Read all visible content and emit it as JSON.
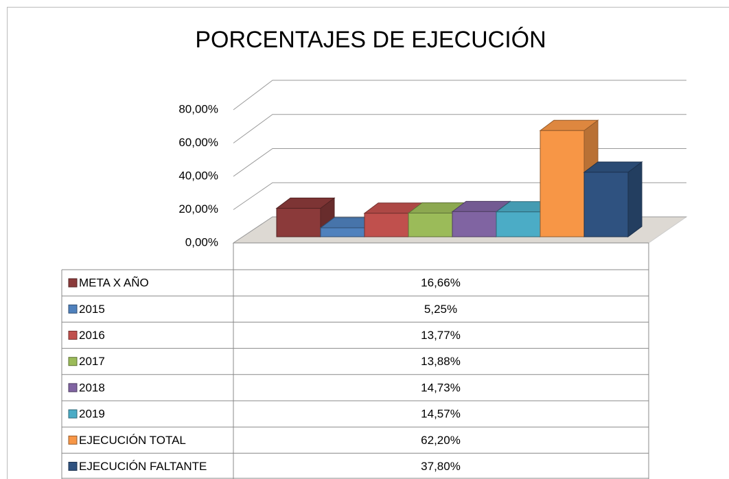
{
  "chart_data": {
    "type": "bar3d",
    "title": "PORCENTAJES DE EJECUCIÓN",
    "categories": [
      "META X AÑO",
      "2015",
      "2016",
      "2017",
      "2018",
      "2019",
      "EJECUCIÓN TOTAL",
      "EJECUCIÓN FALTANTE"
    ],
    "values": [
      16.66,
      5.25,
      13.77,
      13.88,
      14.73,
      14.57,
      62.2,
      37.8
    ],
    "value_labels": [
      "16,66%",
      "5,25%",
      "13,77%",
      "13,88%",
      "14,73%",
      "14,57%",
      "62,20%",
      "37,80%"
    ],
    "colors": [
      "#8b3a3a",
      "#4f81bd",
      "#c0504d",
      "#9bbb59",
      "#8064a2",
      "#4bacc6",
      "#f79646",
      "#2f5280"
    ],
    "ylim": [
      0,
      80
    ],
    "yticks": [
      {
        "value": 0,
        "label": "0,00%"
      },
      {
        "value": 20,
        "label": "20,00%"
      },
      {
        "value": 40,
        "label": "40,00%"
      },
      {
        "value": 60,
        "label": "60,00%"
      },
      {
        "value": 80,
        "label": "80,00%"
      }
    ],
    "grid": true
  }
}
